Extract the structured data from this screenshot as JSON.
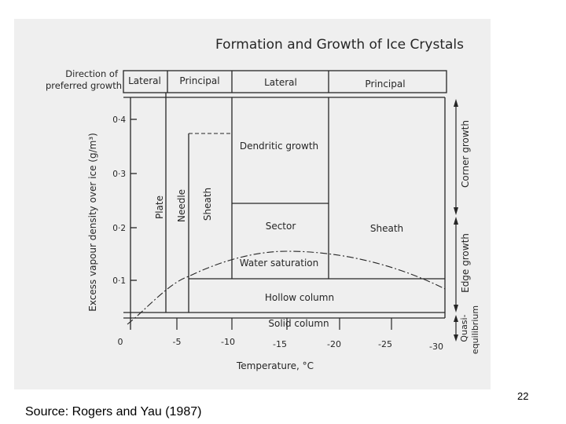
{
  "figure": {
    "title": "Formation and Growth of Ice Crystals",
    "direction_header": [
      "Direction of",
      "preferred growth"
    ],
    "direction_cells": [
      "Lateral",
      "Principal",
      "Lateral",
      "Principal"
    ],
    "y_axis_label": "Excess vapour density over ice (g/m³)",
    "y_ticks": [
      "0",
      "0·1",
      "0·2",
      "0·3",
      "0·4"
    ],
    "x_axis_label": "Temperature, °C",
    "x_ticks": [
      "0",
      "-5",
      "-10",
      "-15",
      "-20",
      "-25",
      "-30"
    ],
    "regions": {
      "plate": "Plate",
      "needle": "Needle",
      "sheath_narrow": "Sheath",
      "dendritic": "Dendritic growth",
      "sector": "Sector",
      "sheath_wide": "Sheath",
      "water_saturation": "Water saturation",
      "hollow_column": "Hollow column",
      "solid_column": "Solid column"
    },
    "growth_modes": [
      "Corner growth",
      "Edge growth",
      "Quasi-",
      "equilibrium"
    ]
  },
  "slide": {
    "page_number": "22",
    "source": "Source: Rogers and Yau (1987)"
  },
  "colors": {
    "paper": "#efefef",
    "ink": "#262626"
  }
}
